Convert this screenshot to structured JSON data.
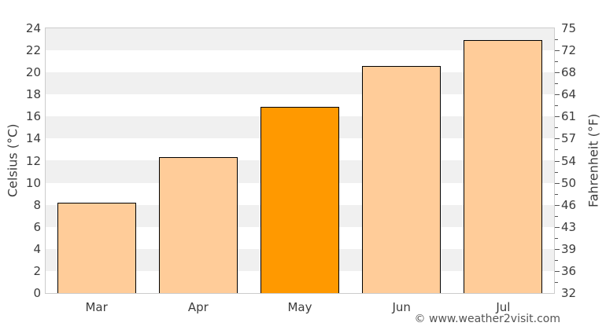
{
  "chart_data": {
    "type": "bar",
    "title": "",
    "categories": [
      "Mar",
      "Apr",
      "May",
      "Jun",
      "Jul"
    ],
    "values": [
      8.2,
      12.3,
      16.9,
      20.6,
      22.9
    ],
    "unit": "°C",
    "highlight_index": 2,
    "highlighted_category": "May",
    "xlabel": "",
    "ylabel_left": "Celsius (°C)",
    "ylabel_right": "Fahrenheit (°F)",
    "ylim_celsius": [
      0,
      24
    ],
    "left_tick_step": 2,
    "left_ticks": [
      0,
      2,
      4,
      6,
      8,
      10,
      12,
      14,
      16,
      18,
      20,
      22,
      24
    ],
    "right_tick_labels": [
      "32",
      "36",
      "39",
      "43",
      "46",
      "50",
      "54",
      "57",
      "61",
      "64",
      "68",
      "72",
      "75"
    ],
    "right_minor_ticks_celsius": [
      1,
      3,
      5,
      7,
      9,
      11,
      13,
      15,
      17,
      19,
      21,
      23
    ],
    "grid": "alternating horizontal bands, 2°C tall, gray topmost",
    "legend": "none",
    "colors": {
      "bar": "#FFCC99",
      "bar_highlight": "#FF9900",
      "bar_border": "#000000",
      "band_gray": "#F0F0F0",
      "band_white": "#FFFFFF",
      "plot_border": "#CCCCCC",
      "tick_text": "#3C3C3C"
    }
  },
  "attribution": {
    "text": "© www.weather2visit.com"
  }
}
